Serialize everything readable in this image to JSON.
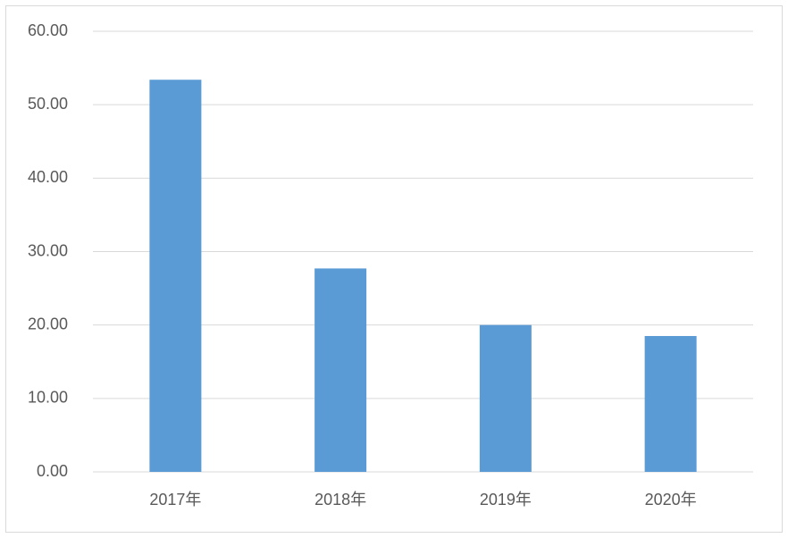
{
  "chart_data": {
    "type": "bar",
    "categories": [
      "2017年",
      "2018年",
      "2019年",
      "2020年"
    ],
    "values": [
      53.4,
      27.7,
      20.0,
      18.5
    ],
    "color": "#5b9bd5",
    "ylim": [
      0,
      60
    ],
    "yticks": [
      {
        "value": 0,
        "label": "0.00"
      },
      {
        "value": 10,
        "label": "10.00"
      },
      {
        "value": 20,
        "label": "20.00"
      },
      {
        "value": 30,
        "label": "30.00"
      },
      {
        "value": 40,
        "label": "40.00"
      },
      {
        "value": 50,
        "label": "50.00"
      },
      {
        "value": 60,
        "label": "60.00"
      }
    ],
    "grid": true
  }
}
